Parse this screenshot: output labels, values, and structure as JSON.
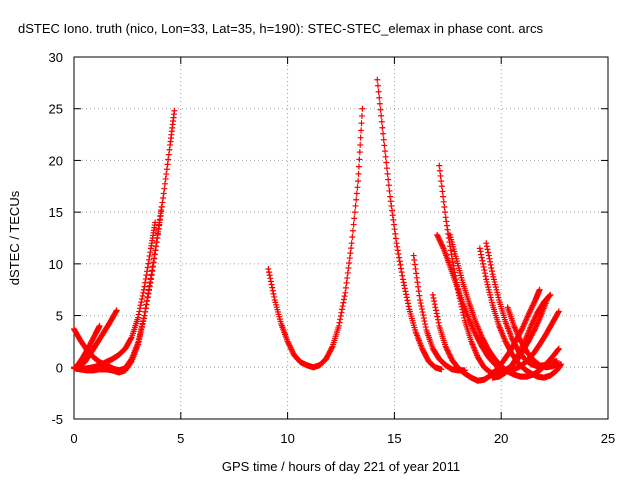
{
  "chart_data": {
    "type": "scatter",
    "title": "dSTEC Iono. truth (nico, Lon=33, Lat=35, h=190): STEC-STEC_elemax in phase cont. arcs",
    "xlabel": "GPS time / hours of day 221 of year 2011",
    "ylabel": "dSTEC  / TECUs",
    "xlim": [
      0,
      25
    ],
    "ylim": [
      -5,
      30
    ],
    "xticks": [
      0,
      5,
      10,
      15,
      20,
      25
    ],
    "yticks": [
      -5,
      0,
      5,
      10,
      15,
      20,
      25,
      30
    ],
    "grid": true,
    "marker": "plus",
    "colors": {
      "series": "#ff0000",
      "grid": "#a0a0a0",
      "axis": "#000000"
    },
    "series": [
      {
        "x": [
          0,
          0.3,
          0.6,
          0.9,
          1.2,
          1.5,
          1.8,
          2.1,
          2.4,
          2.7,
          3.0,
          3.3,
          3.6,
          3.9,
          4.2,
          4.5,
          4.7
        ],
        "y": [
          3.7,
          2.6,
          1.7,
          1.0,
          0.5,
          0.2,
          -0.1,
          -0.3,
          -0.1,
          0.8,
          2.4,
          5.0,
          8.6,
          12.5,
          16.8,
          21.5,
          24.8
        ]
      },
      {
        "x": [
          0,
          0.3,
          0.6,
          0.9,
          1.2,
          1.5,
          1.8,
          2.1,
          2.4,
          2.7,
          3.0,
          3.3,
          3.6,
          3.9,
          4.1
        ],
        "y": [
          0.0,
          -0.2,
          -0.3,
          -0.3,
          -0.2,
          -0.2,
          -0.3,
          -0.5,
          -0.3,
          0.6,
          2.2,
          5.0,
          8.5,
          12.5,
          15.5
        ]
      },
      {
        "x": [
          0,
          0.3,
          0.6,
          0.9,
          1.2,
          1.5,
          1.8,
          2.1,
          2.4,
          2.7,
          3.0,
          3.3,
          3.6,
          3.8
        ],
        "y": [
          -0.1,
          -0.2,
          -0.1,
          0.0,
          0.2,
          0.5,
          0.8,
          1.2,
          1.8,
          2.9,
          4.8,
          7.8,
          11.5,
          14.0
        ]
      },
      {
        "x": [
          0.2,
          0.5,
          0.8,
          1.1,
          1.4,
          1.7,
          2.0
        ],
        "y": [
          0.0,
          0.5,
          1.4,
          2.4,
          3.4,
          4.4,
          5.5
        ]
      },
      {
        "x": [
          0.1,
          0.4,
          0.7,
          1.0,
          1.2
        ],
        "y": [
          0.0,
          0.9,
          2.0,
          3.2,
          4.0
        ]
      },
      {
        "x": [
          9.1,
          9.4,
          9.7,
          10.0,
          10.3,
          10.6,
          10.9,
          11.2,
          11.5,
          11.8,
          12.1,
          12.4,
          12.7,
          13.0,
          13.3,
          13.5
        ],
        "y": [
          9.5,
          6.5,
          4.2,
          2.5,
          1.2,
          0.5,
          0.2,
          0.0,
          0.2,
          0.8,
          2.0,
          4.0,
          7.2,
          12.0,
          18.0,
          25.0
        ]
      },
      {
        "x": [
          14.2,
          14.5,
          14.8,
          15.1,
          15.4,
          15.7,
          16.0,
          16.3,
          16.6,
          16.9,
          17.2
        ],
        "y": [
          27.8,
          22.0,
          16.5,
          12.0,
          8.5,
          5.6,
          3.4,
          1.8,
          0.6,
          0.0,
          -0.2
        ]
      },
      {
        "x": [
          15.9,
          16.2,
          16.5,
          16.8,
          17.1,
          17.4,
          17.7,
          18.0,
          18.3
        ],
        "y": [
          10.8,
          6.5,
          3.6,
          1.8,
          0.8,
          0.2,
          -0.2,
          -0.3,
          -0.3
        ]
      },
      {
        "x": [
          16.8,
          17.1,
          17.4,
          17.7,
          18.0,
          18.3,
          18.6,
          18.9,
          19.2,
          19.5,
          19.8,
          20.1,
          20.4,
          20.7,
          21.0,
          21.3,
          21.6,
          21.8
        ],
        "y": [
          7.0,
          4.0,
          2.0,
          0.7,
          -0.1,
          -0.6,
          -1.0,
          -1.3,
          -1.2,
          -0.8,
          -0.2,
          0.6,
          1.5,
          2.6,
          3.8,
          5.2,
          6.5,
          7.5
        ]
      },
      {
        "x": [
          17.1,
          17.4,
          17.7,
          18.0,
          18.3,
          18.6,
          18.9,
          19.2,
          19.5,
          19.8,
          20.1,
          20.4,
          20.7,
          21.0,
          21.3,
          21.6,
          21.9,
          22.2
        ],
        "y": [
          19.5,
          14.5,
          10.5,
          7.2,
          4.5,
          2.5,
          1.0,
          0.0,
          -0.5,
          -0.6,
          -0.4,
          0.0,
          0.6,
          1.5,
          2.6,
          3.8,
          5.2,
          6.8
        ]
      },
      {
        "x": [
          17.0,
          17.3,
          17.6,
          17.9,
          18.2,
          18.5,
          18.8,
          19.1,
          19.4,
          19.7,
          20.0,
          20.3,
          20.6,
          20.9,
          21.2,
          21.5,
          21.8,
          22.1,
          22.4,
          22.7
        ],
        "y": [
          12.8,
          11.5,
          9.8,
          8.0,
          6.2,
          4.6,
          3.2,
          2.0,
          1.0,
          0.3,
          -0.1,
          -0.3,
          -0.2,
          0.1,
          0.6,
          1.3,
          2.2,
          3.2,
          4.3,
          5.4
        ]
      },
      {
        "x": [
          17.6,
          17.9,
          18.2,
          18.5,
          18.8,
          19.1,
          19.4,
          19.7,
          20.0,
          20.3,
          20.6,
          20.9,
          21.2,
          21.5,
          21.8,
          22.1,
          22.4,
          22.7
        ],
        "y": [
          12.8,
          10.5,
          8.2,
          6.2,
          4.4,
          2.9,
          1.7,
          0.8,
          0.1,
          -0.4,
          -0.7,
          -0.9,
          -0.9,
          -0.7,
          -0.3,
          0.3,
          1.0,
          1.8
        ]
      },
      {
        "x": [
          19.0,
          19.3,
          19.6,
          19.9,
          20.2,
          20.5,
          20.8,
          21.1,
          21.4,
          21.7,
          22.0,
          22.3,
          22.6,
          22.8
        ],
        "y": [
          11.5,
          8.5,
          6.0,
          4.0,
          2.5,
          1.3,
          0.4,
          -0.2,
          -0.6,
          -0.9,
          -1.0,
          -0.8,
          -0.3,
          0.3
        ]
      },
      {
        "x": [
          19.3,
          19.6,
          19.9,
          20.2,
          20.5,
          20.8,
          21.1,
          21.4,
          21.7,
          22.0,
          22.3,
          22.6
        ],
        "y": [
          12.0,
          9.0,
          6.5,
          4.4,
          2.8,
          1.6,
          0.8,
          0.3,
          0.1,
          0.2,
          0.4,
          0.6
        ]
      },
      {
        "x": [
          20.3,
          20.6,
          20.9,
          21.2,
          21.5,
          21.8,
          22.1,
          22.4,
          22.7
        ],
        "y": [
          5.8,
          4.0,
          2.6,
          1.5,
          0.7,
          0.2,
          0.0,
          0.1,
          0.4
        ]
      },
      {
        "x": [
          19.6,
          19.9,
          20.2,
          20.5,
          20.8,
          21.1,
          21.4,
          21.7,
          22.0,
          22.3
        ],
        "y": [
          -1.0,
          -0.9,
          -0.5,
          0.2,
          1.2,
          2.5,
          4.0,
          5.3,
          6.3,
          7.0
        ]
      }
    ]
  }
}
